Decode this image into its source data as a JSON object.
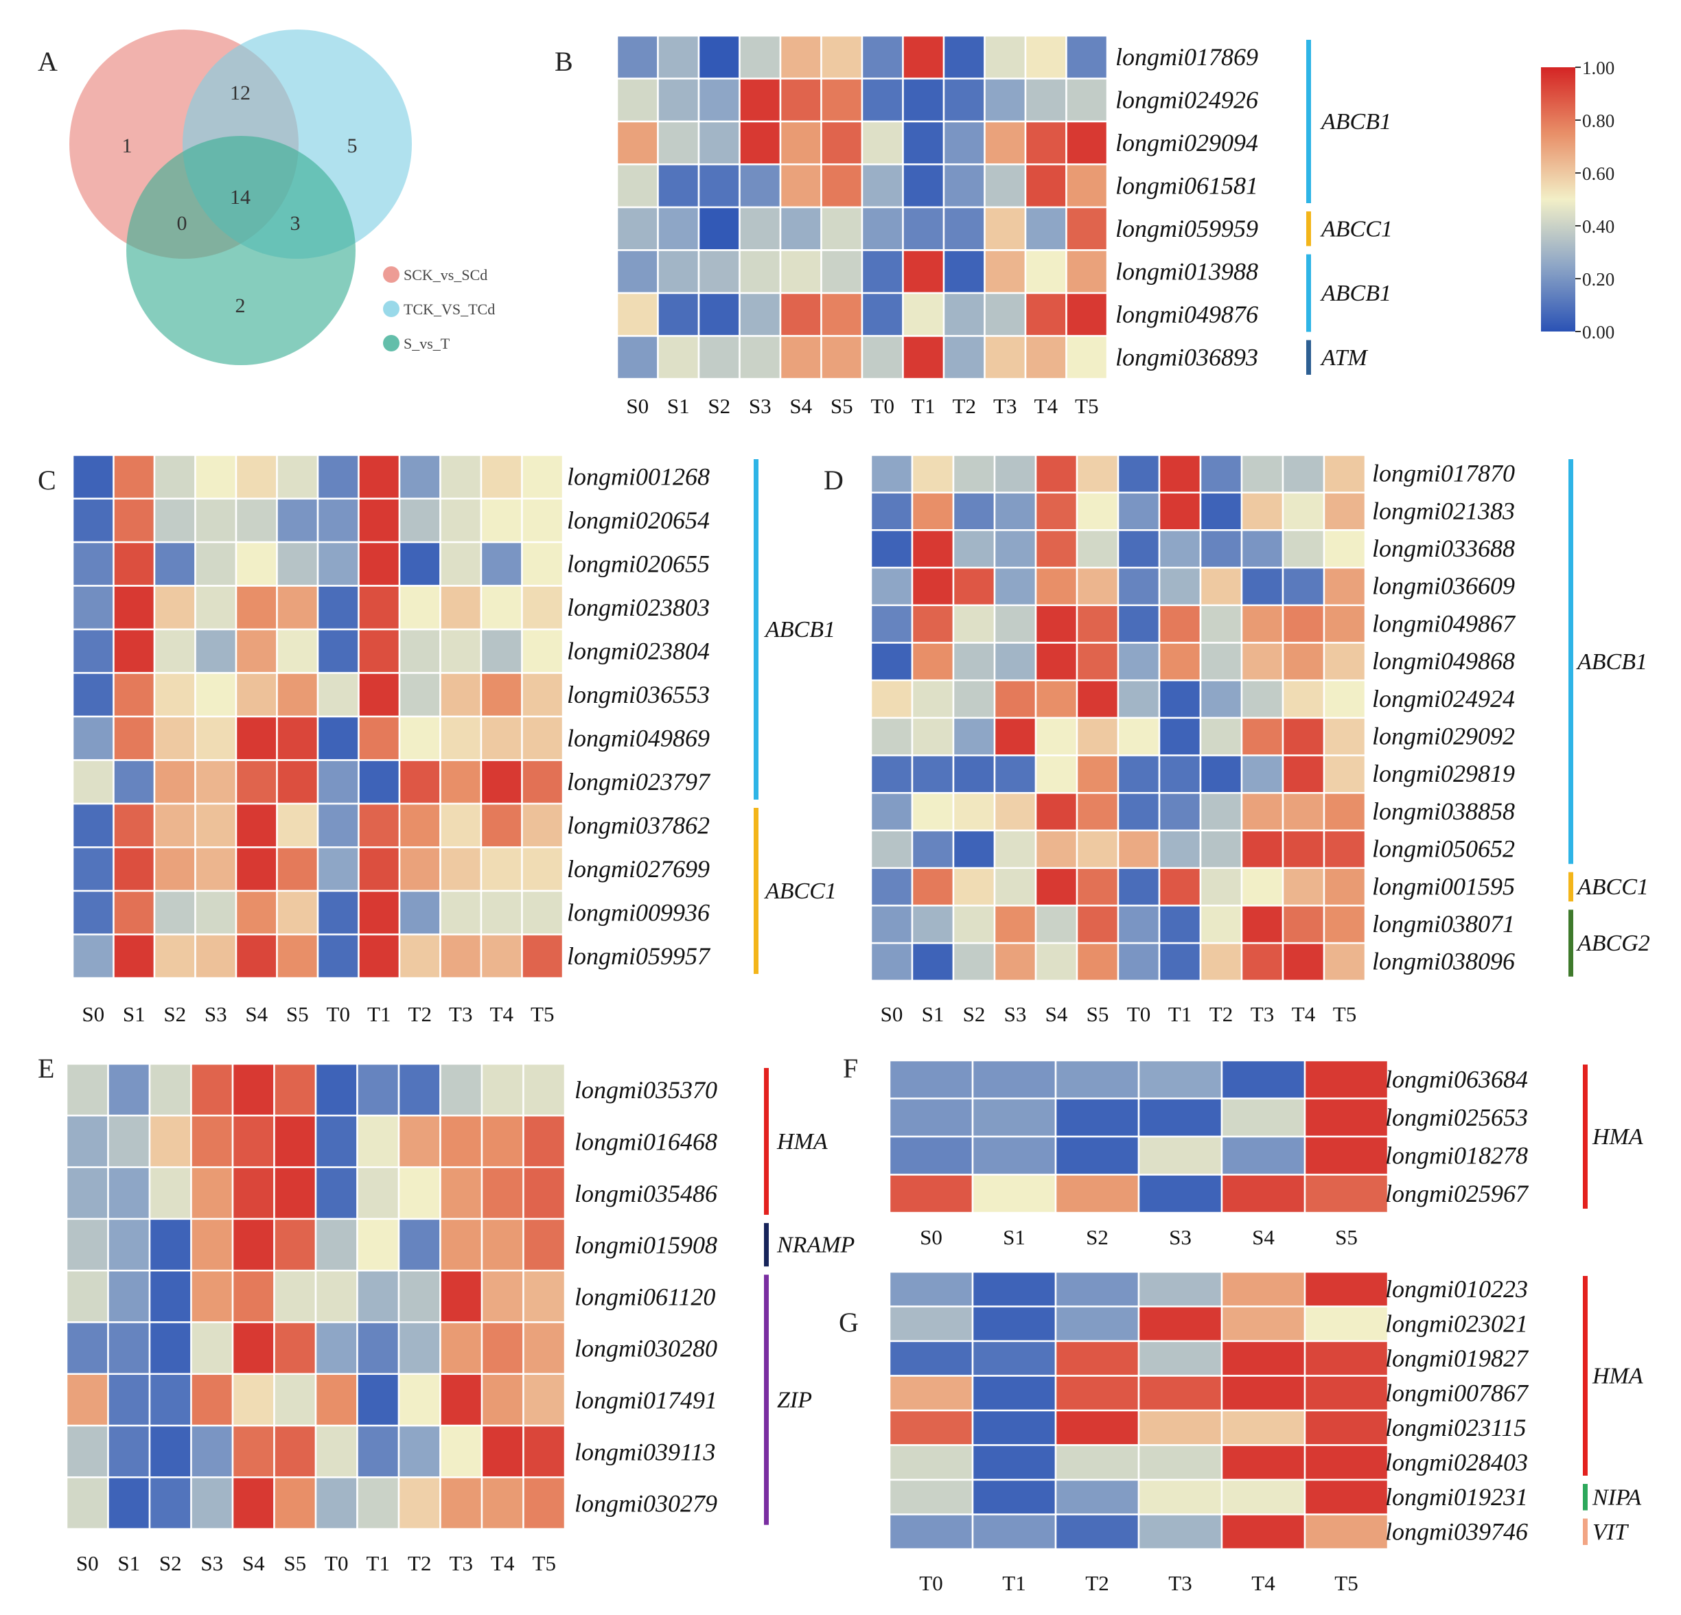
{
  "figure": {
    "panels": [
      "A",
      "B",
      "C",
      "D",
      "E",
      "F",
      "G"
    ]
  },
  "colors": {
    "scale": [
      "#2a52b5",
      "#8ea6c6",
      "#f2efc7",
      "#e88f68",
      "#d42424"
    ],
    "venn": [
      "#e9837b",
      "#7fcfe3",
      "#3cae95"
    ],
    "families": {
      "ABCB1": "#2eb4e6",
      "ABCC1": "#f3b51a",
      "ABCG2": "#3f7a2c",
      "ATM": "#2d5f92",
      "HMA": "#e3211e",
      "NRAMP": "#17245a",
      "ZIP": "#7a2ea1",
      "NIPA": "#2ca85b",
      "VIT": "#f2a584"
    }
  },
  "venn": {
    "regions": {
      "only_a": "1",
      "a_b": "12",
      "only_b": "5",
      "a_c": "0",
      "abc": "14",
      "b_c": "3",
      "only_c": "2"
    },
    "legend": [
      "SCK_vs_SCd",
      "TCK_VS_TCd",
      "S_vs_T"
    ]
  },
  "colorbar": {
    "ticks": [
      "1.00",
      "0.80",
      "0.60",
      "0.40",
      "0.20",
      "0.00"
    ]
  },
  "chart_data": [
    {
      "panel": "B",
      "type": "heatmap",
      "columns": [
        "S0",
        "S1",
        "S2",
        "S3",
        "S4",
        "S5",
        "T0",
        "T1",
        "T2",
        "T3",
        "T4",
        "T5"
      ],
      "rows": [
        "longmi017869",
        "longmi024926",
        "longmi029094",
        "longmi061581",
        "longmi059959",
        "longmi013988",
        "longmi049876",
        "longmi036893"
      ],
      "values": [
        [
          0.18,
          0.3,
          0.02,
          0.38,
          0.65,
          0.6,
          0.15,
          0.95,
          0.05,
          0.45,
          0.52,
          0.15
        ],
        [
          0.42,
          0.3,
          0.25,
          0.95,
          0.85,
          0.8,
          0.1,
          0.05,
          0.1,
          0.25,
          0.35,
          0.38
        ],
        [
          0.7,
          0.38,
          0.3,
          0.95,
          0.72,
          0.85,
          0.45,
          0.05,
          0.2,
          0.7,
          0.88,
          0.95
        ],
        [
          0.42,
          0.1,
          0.1,
          0.18,
          0.7,
          0.8,
          0.28,
          0.05,
          0.2,
          0.35,
          0.9,
          0.72
        ],
        [
          0.3,
          0.25,
          0.02,
          0.35,
          0.28,
          0.42,
          0.22,
          0.15,
          0.15,
          0.6,
          0.25,
          0.85
        ],
        [
          0.22,
          0.3,
          0.32,
          0.42,
          0.45,
          0.4,
          0.1,
          0.95,
          0.05,
          0.65,
          0.5,
          0.7
        ],
        [
          0.55,
          0.08,
          0.05,
          0.3,
          0.85,
          0.78,
          0.1,
          0.48,
          0.3,
          0.35,
          0.88,
          0.95
        ],
        [
          0.22,
          0.45,
          0.38,
          0.4,
          0.7,
          0.7,
          0.38,
          0.95,
          0.28,
          0.6,
          0.65,
          0.5
        ]
      ],
      "groups": [
        {
          "label": "ABCB1",
          "from": 0,
          "to": 3,
          "color": "ABCB1"
        },
        {
          "label": "ABCC1",
          "from": 4,
          "to": 4,
          "color": "ABCC1"
        },
        {
          "label": "ABCB1",
          "from": 5,
          "to": 6,
          "color": "ABCB1"
        },
        {
          "label": "ATM",
          "from": 7,
          "to": 7,
          "color": "ATM"
        }
      ]
    },
    {
      "panel": "C",
      "type": "heatmap",
      "columns": [
        "S0",
        "S1",
        "S2",
        "S3",
        "S4",
        "S5",
        "T0",
        "T1",
        "T2",
        "T3",
        "T4",
        "T5"
      ],
      "rows": [
        "longmi001268",
        "longmi020654",
        "longmi020655",
        "longmi023803",
        "longmi023804",
        "longmi036553",
        "longmi049869",
        "longmi023797",
        "longmi037862",
        "longmi027699",
        "longmi009936",
        "longmi059957"
      ],
      "values": [
        [
          0.05,
          0.8,
          0.42,
          0.5,
          0.55,
          0.45,
          0.15,
          0.95,
          0.22,
          0.45,
          0.55,
          0.5
        ],
        [
          0.08,
          0.82,
          0.38,
          0.42,
          0.4,
          0.2,
          0.2,
          0.95,
          0.35,
          0.45,
          0.5,
          0.5
        ],
        [
          0.15,
          0.9,
          0.15,
          0.42,
          0.5,
          0.35,
          0.25,
          0.95,
          0.05,
          0.45,
          0.2,
          0.5
        ],
        [
          0.18,
          0.95,
          0.6,
          0.45,
          0.75,
          0.7,
          0.08,
          0.9,
          0.5,
          0.6,
          0.5,
          0.55
        ],
        [
          0.12,
          0.95,
          0.45,
          0.3,
          0.7,
          0.48,
          0.08,
          0.9,
          0.42,
          0.45,
          0.35,
          0.5
        ],
        [
          0.08,
          0.8,
          0.55,
          0.5,
          0.62,
          0.72,
          0.45,
          0.95,
          0.4,
          0.62,
          0.75,
          0.6
        ],
        [
          0.22,
          0.8,
          0.6,
          0.55,
          0.95,
          0.92,
          0.05,
          0.8,
          0.5,
          0.55,
          0.6,
          0.6
        ],
        [
          0.45,
          0.15,
          0.7,
          0.65,
          0.85,
          0.9,
          0.2,
          0.05,
          0.88,
          0.75,
          0.95,
          0.82
        ],
        [
          0.08,
          0.85,
          0.65,
          0.62,
          0.95,
          0.55,
          0.2,
          0.85,
          0.75,
          0.55,
          0.8,
          0.62
        ],
        [
          0.1,
          0.9,
          0.7,
          0.65,
          0.95,
          0.8,
          0.25,
          0.9,
          0.7,
          0.6,
          0.55,
          0.55
        ],
        [
          0.1,
          0.82,
          0.38,
          0.42,
          0.75,
          0.6,
          0.08,
          0.95,
          0.22,
          0.45,
          0.45,
          0.45
        ],
        [
          0.25,
          0.95,
          0.6,
          0.62,
          0.92,
          0.75,
          0.08,
          0.95,
          0.6,
          0.68,
          0.65,
          0.85
        ]
      ],
      "groups": [
        {
          "label": "ABCB1",
          "from": 0,
          "to": 7,
          "color": "ABCB1"
        },
        {
          "label": "ABCC1",
          "from": 8,
          "to": 11,
          "color": "ABCC1"
        }
      ]
    },
    {
      "panel": "D",
      "type": "heatmap",
      "columns": [
        "S0",
        "S1",
        "S2",
        "S3",
        "S4",
        "S5",
        "T0",
        "T1",
        "T2",
        "T3",
        "T4",
        "T5"
      ],
      "rows": [
        "longmi017870",
        "longmi021383",
        "longmi033688",
        "longmi036609",
        "longmi049867",
        "longmi049868",
        "longmi024924",
        "longmi029092",
        "longmi029819",
        "longmi038858",
        "longmi050652",
        "longmi001595",
        "longmi038071",
        "longmi038096"
      ],
      "values": [
        [
          0.25,
          0.55,
          0.38,
          0.35,
          0.88,
          0.58,
          0.08,
          0.95,
          0.15,
          0.38,
          0.35,
          0.6
        ],
        [
          0.12,
          0.75,
          0.15,
          0.22,
          0.85,
          0.5,
          0.2,
          0.95,
          0.05,
          0.6,
          0.48,
          0.65
        ],
        [
          0.05,
          0.95,
          0.3,
          0.25,
          0.85,
          0.42,
          0.08,
          0.25,
          0.15,
          0.2,
          0.42,
          0.5
        ],
        [
          0.25,
          0.95,
          0.88,
          0.25,
          0.75,
          0.65,
          0.15,
          0.3,
          0.6,
          0.08,
          0.12,
          0.7
        ],
        [
          0.15,
          0.85,
          0.45,
          0.38,
          0.95,
          0.85,
          0.08,
          0.8,
          0.4,
          0.72,
          0.78,
          0.72
        ],
        [
          0.05,
          0.75,
          0.35,
          0.3,
          0.95,
          0.85,
          0.25,
          0.75,
          0.38,
          0.65,
          0.72,
          0.6
        ],
        [
          0.55,
          0.45,
          0.38,
          0.8,
          0.75,
          0.95,
          0.3,
          0.05,
          0.25,
          0.38,
          0.55,
          0.5
        ],
        [
          0.4,
          0.45,
          0.25,
          0.95,
          0.5,
          0.6,
          0.5,
          0.05,
          0.42,
          0.8,
          0.9,
          0.58
        ],
        [
          0.1,
          0.1,
          0.08,
          0.1,
          0.5,
          0.75,
          0.1,
          0.1,
          0.05,
          0.25,
          0.92,
          0.58
        ],
        [
          0.22,
          0.5,
          0.52,
          0.58,
          0.92,
          0.78,
          0.1,
          0.15,
          0.35,
          0.7,
          0.7,
          0.75
        ],
        [
          0.35,
          0.15,
          0.05,
          0.45,
          0.65,
          0.6,
          0.68,
          0.3,
          0.35,
          0.92,
          0.9,
          0.88
        ],
        [
          0.15,
          0.8,
          0.55,
          0.45,
          0.95,
          0.82,
          0.08,
          0.88,
          0.45,
          0.5,
          0.65,
          0.72
        ],
        [
          0.22,
          0.3,
          0.45,
          0.75,
          0.4,
          0.85,
          0.2,
          0.08,
          0.48,
          0.95,
          0.82,
          0.75
        ],
        [
          0.22,
          0.05,
          0.38,
          0.7,
          0.45,
          0.75,
          0.2,
          0.08,
          0.6,
          0.88,
          0.95,
          0.65
        ]
      ],
      "groups": [
        {
          "label": "ABCB1",
          "from": 0,
          "to": 10,
          "color": "ABCB1"
        },
        {
          "label": "ABCC1",
          "from": 11,
          "to": 11,
          "color": "ABCC1"
        },
        {
          "label": "ABCG2",
          "from": 12,
          "to": 13,
          "color": "ABCG2"
        }
      ]
    },
    {
      "panel": "E",
      "type": "heatmap",
      "columns": [
        "S0",
        "S1",
        "S2",
        "S3",
        "S4",
        "S5",
        "T0",
        "T1",
        "T2",
        "T3",
        "T4",
        "T5"
      ],
      "rows": [
        "longmi035370",
        "longmi016468",
        "longmi035486",
        "longmi015908",
        "longmi061120",
        "longmi030280",
        "longmi017491",
        "longmi039113",
        "longmi030279"
      ],
      "values": [
        [
          0.4,
          0.2,
          0.42,
          0.85,
          0.95,
          0.85,
          0.05,
          0.15,
          0.1,
          0.38,
          0.45,
          0.45
        ],
        [
          0.28,
          0.35,
          0.6,
          0.8,
          0.88,
          0.95,
          0.08,
          0.48,
          0.7,
          0.75,
          0.75,
          0.85
        ],
        [
          0.28,
          0.25,
          0.45,
          0.72,
          0.92,
          0.95,
          0.08,
          0.45,
          0.5,
          0.72,
          0.8,
          0.85
        ],
        [
          0.35,
          0.25,
          0.05,
          0.72,
          0.95,
          0.85,
          0.35,
          0.5,
          0.15,
          0.72,
          0.72,
          0.82
        ],
        [
          0.42,
          0.22,
          0.05,
          0.72,
          0.8,
          0.45,
          0.45,
          0.3,
          0.35,
          0.95,
          0.68,
          0.65
        ],
        [
          0.15,
          0.15,
          0.05,
          0.45,
          0.95,
          0.85,
          0.25,
          0.15,
          0.3,
          0.72,
          0.78,
          0.7
        ],
        [
          0.7,
          0.12,
          0.1,
          0.8,
          0.55,
          0.45,
          0.75,
          0.05,
          0.5,
          0.95,
          0.72,
          0.65
        ],
        [
          0.35,
          0.12,
          0.05,
          0.2,
          0.82,
          0.85,
          0.45,
          0.15,
          0.25,
          0.5,
          0.95,
          0.92
        ],
        [
          0.42,
          0.05,
          0.1,
          0.3,
          0.95,
          0.75,
          0.3,
          0.4,
          0.58,
          0.72,
          0.72,
          0.78
        ]
      ],
      "groups": [
        {
          "label": "HMA",
          "from": 0,
          "to": 2,
          "color": "HMA"
        },
        {
          "label": "NRAMP",
          "from": 3,
          "to": 3,
          "color": "NRAMP"
        },
        {
          "label": "ZIP",
          "from": 4,
          "to": 8,
          "color": "ZIP"
        }
      ]
    },
    {
      "panel": "F",
      "type": "heatmap",
      "columns": [
        "S0",
        "S1",
        "S2",
        "S3",
        "S4",
        "S5"
      ],
      "rows": [
        "longmi063684",
        "longmi025653",
        "longmi018278",
        "longmi025967"
      ],
      "values": [
        [
          0.2,
          0.2,
          0.22,
          0.25,
          0.05,
          0.95
        ],
        [
          0.2,
          0.22,
          0.05,
          0.05,
          0.42,
          0.95
        ],
        [
          0.15,
          0.2,
          0.05,
          0.45,
          0.2,
          0.95
        ],
        [
          0.88,
          0.5,
          0.72,
          0.05,
          0.92,
          0.85
        ]
      ],
      "groups": [
        {
          "label": "HMA",
          "from": 0,
          "to": 3,
          "color": "HMA"
        }
      ]
    },
    {
      "panel": "G",
      "type": "heatmap",
      "columns": [
        "T0",
        "T1",
        "T2",
        "T3",
        "T4",
        "T5"
      ],
      "rows": [
        "longmi010223",
        "longmi023021",
        "longmi019827",
        "longmi007867",
        "longmi023115",
        "longmi028403",
        "longmi019231",
        "longmi039746"
      ],
      "values": [
        [
          0.22,
          0.05,
          0.2,
          0.32,
          0.7,
          0.95
        ],
        [
          0.32,
          0.05,
          0.22,
          0.95,
          0.68,
          0.5
        ],
        [
          0.08,
          0.1,
          0.88,
          0.35,
          0.95,
          0.92
        ],
        [
          0.68,
          0.05,
          0.88,
          0.88,
          0.95,
          0.92
        ],
        [
          0.85,
          0.05,
          0.95,
          0.62,
          0.6,
          0.92
        ],
        [
          0.42,
          0.05,
          0.42,
          0.42,
          0.95,
          0.95
        ],
        [
          0.4,
          0.05,
          0.22,
          0.48,
          0.48,
          0.95
        ],
        [
          0.2,
          0.2,
          0.08,
          0.3,
          0.95,
          0.7
        ]
      ],
      "groups": [
        {
          "label": "HMA",
          "from": 0,
          "to": 5,
          "color": "HMA"
        },
        {
          "label": "NIPA",
          "from": 6,
          "to": 6,
          "color": "NIPA"
        },
        {
          "label": "VIT",
          "from": 7,
          "to": 7,
          "color": "VIT"
        }
      ]
    }
  ]
}
